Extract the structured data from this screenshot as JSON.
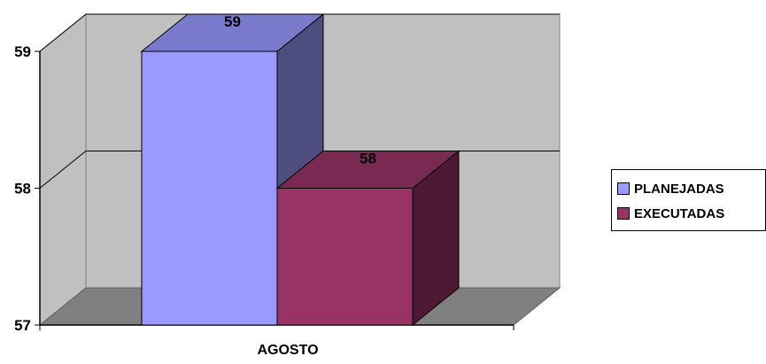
{
  "chart_data": {
    "type": "bar",
    "categories": [
      "AGOSTO"
    ],
    "series": [
      {
        "name": "PLANEJADAS",
        "values": [
          59
        ],
        "color": "#9999ff",
        "side_color": "#4d4d80",
        "top_color": "#7a7acc"
      },
      {
        "name": "EXECUTADAS",
        "values": [
          58
        ],
        "color": "#993366",
        "side_color": "#4d1a33",
        "top_color": "#7a2952"
      }
    ],
    "title": "",
    "xlabel": "",
    "ylabel": "",
    "ylim": [
      57,
      59
    ],
    "yticks": [
      "57",
      "58",
      "59"
    ],
    "grid": true,
    "legend": "right",
    "chart_style": "3d-column",
    "wall_color": "#c0c0c0",
    "floor_color": "#808080"
  }
}
